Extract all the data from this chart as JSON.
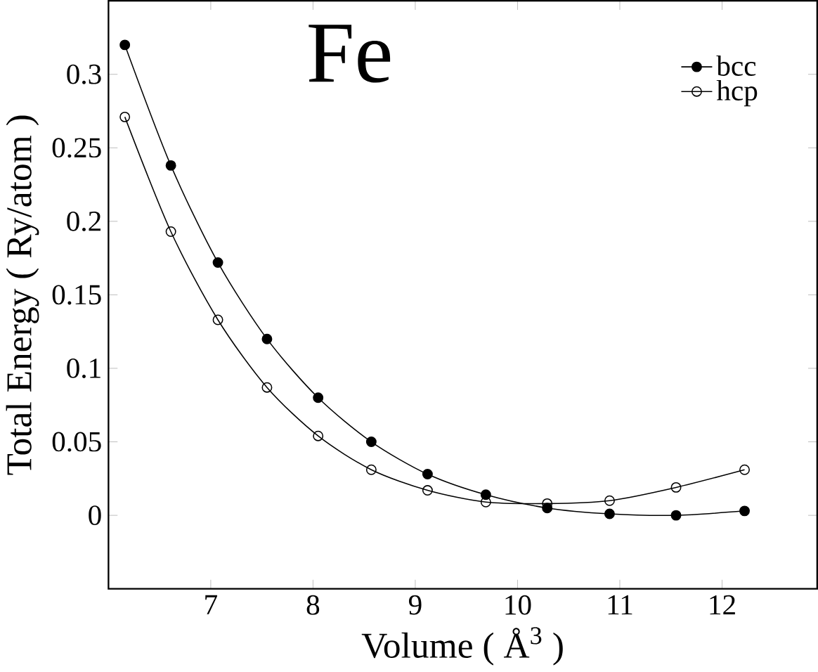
{
  "chart_data": {
    "type": "line",
    "xlabel": "Volume ( Å$^{3}$ )",
    "ylabel": "Total Energy ( Ry/atom )",
    "annotations": [
      "Fe"
    ],
    "xlim": [
      6,
      12.93
    ],
    "ylim": [
      -0.05,
      0.35
    ],
    "xticks": [
      7,
      8,
      9,
      10,
      11,
      12
    ],
    "yticks": [
      0,
      0.05,
      0.1,
      0.15,
      0.2,
      0.25,
      0.3
    ],
    "legend": "top right",
    "grid": false,
    "marker": "circle",
    "series": [
      {
        "name": "bcc",
        "color": "#000000",
        "x": [
          6.16,
          6.61,
          7.07,
          7.55,
          8.05,
          8.57,
          9.12,
          9.69,
          10.29,
          10.9,
          11.55,
          12.22
        ],
        "values": [
          0.32,
          0.238,
          0.172,
          0.12,
          0.08,
          0.05,
          0.028,
          0.014,
          0.005,
          0.001,
          0.0,
          0.003
        ]
      },
      {
        "name": "hcp",
        "color": "#000000",
        "x": [
          6.16,
          6.61,
          7.07,
          7.55,
          8.05,
          8.57,
          9.12,
          9.69,
          10.29,
          10.9,
          11.55,
          12.22
        ],
        "values": [
          0.271,
          0.193,
          0.133,
          0.087,
          0.054,
          0.031,
          0.017,
          0.009,
          0.008,
          0.01,
          0.019,
          0.031
        ]
      }
    ]
  }
}
